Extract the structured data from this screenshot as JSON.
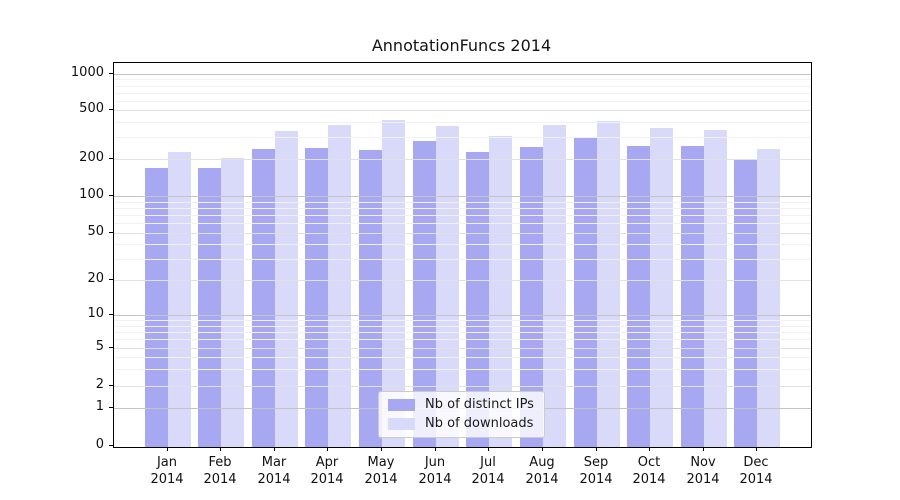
{
  "chart_data": {
    "type": "bar",
    "title": "AnnotationFuncs 2014",
    "categories": [
      "Jan 2014",
      "Feb 2014",
      "Mar 2014",
      "Apr 2014",
      "May 2014",
      "Jun 2014",
      "Jul 2014",
      "Aug 2014",
      "Sep 2014",
      "Oct 2014",
      "Nov 2014",
      "Dec 2014"
    ],
    "series": [
      {
        "name": "Nb of distinct IPs",
        "color": "#a8a8f2",
        "values": [
          170,
          170,
          240,
          245,
          235,
          280,
          230,
          250,
          295,
          255,
          255,
          195
        ]
      },
      {
        "name": "Nb of downloads",
        "color": "#d9d9f9",
        "values": [
          230,
          205,
          335,
          375,
          415,
          370,
          310,
          380,
          410,
          355,
          345,
          240
        ]
      }
    ],
    "y_axis": {
      "scale": "symlog",
      "ticks": [
        0,
        1,
        2,
        5,
        10,
        20,
        50,
        100,
        200,
        500,
        1000
      ],
      "minor_gridlines": [
        3,
        4,
        6,
        7,
        8,
        9,
        30,
        40,
        60,
        70,
        80,
        90,
        300,
        400,
        600,
        700,
        800,
        900
      ],
      "ylim": [
        0,
        1150
      ]
    },
    "grid": true,
    "legend": {
      "position": "lower center inside"
    }
  },
  "colors": {
    "bar_distinct_ips": "#a8a8f2",
    "bar_downloads": "#d9d9f9",
    "grid_power_of_ten": "#c4c4c4",
    "grid_labeled": "#e1e1e1",
    "grid_minor": "#f1f1f1",
    "spine": "#000000",
    "text": "#111111",
    "legend_border": "#cccccc"
  }
}
